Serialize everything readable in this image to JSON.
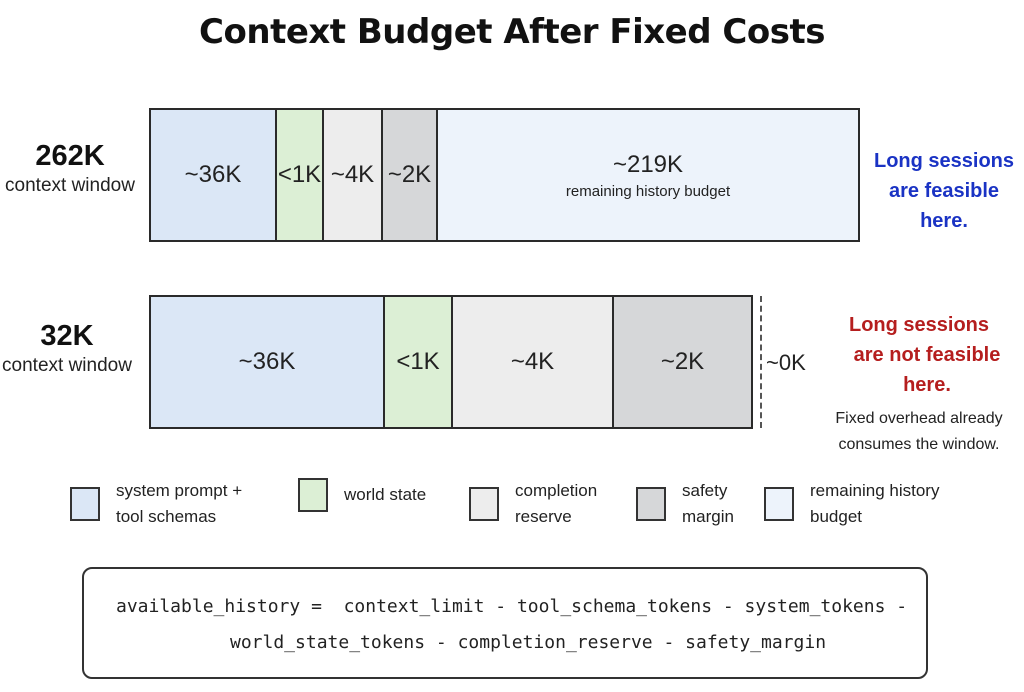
{
  "title": "Context Budget After Fixed Costs",
  "colors": {
    "system_prompt": "#dbe7f6",
    "world_state": "#dcefd5",
    "completion_reserve": "#ededed",
    "safety_margin": "#d6d7d9",
    "remaining_history": "#edf3fb",
    "feasible_text": "#1a33c4",
    "not_feasible_text": "#b51e1e"
  },
  "rows": [
    {
      "size": "262K",
      "caption": "context window",
      "segments": [
        {
          "key": "system_prompt",
          "value": "~36K"
        },
        {
          "key": "world_state",
          "value": "<1K"
        },
        {
          "key": "completion_reserve",
          "value": "~4K"
        },
        {
          "key": "safety_margin",
          "value": "~2K"
        },
        {
          "key": "remaining_history",
          "value": "~219K",
          "sublabel": "remaining history budget"
        }
      ],
      "note": {
        "line1": "Long sessions",
        "line2": "are feasible here."
      }
    },
    {
      "size": "32K",
      "caption": "context window",
      "segments": [
        {
          "key": "system_prompt",
          "value": "~36K"
        },
        {
          "key": "world_state",
          "value": "<1K"
        },
        {
          "key": "completion_reserve",
          "value": "~4K"
        },
        {
          "key": "safety_margin",
          "value": "~2K"
        }
      ],
      "remaining": "~0K",
      "note": {
        "line1": "Long sessions",
        "line2": "are not feasible here.",
        "detail1": "Fixed overhead already",
        "detail2": "consumes the window."
      }
    }
  ],
  "legend": [
    {
      "key": "system_prompt",
      "label": "system prompt +\ntool schemas"
    },
    {
      "key": "world_state",
      "label": "world state"
    },
    {
      "key": "completion_reserve",
      "label": "completion\nreserve"
    },
    {
      "key": "safety_margin",
      "label": "safety\nmargin"
    },
    {
      "key": "remaining_history",
      "label": "remaining history\nbudget"
    }
  ],
  "formula": {
    "line1": "available_history =  context_limit - tool_schema_tokens - system_tokens -",
    "line2": "world_state_tokens - completion_reserve - safety_margin"
  }
}
